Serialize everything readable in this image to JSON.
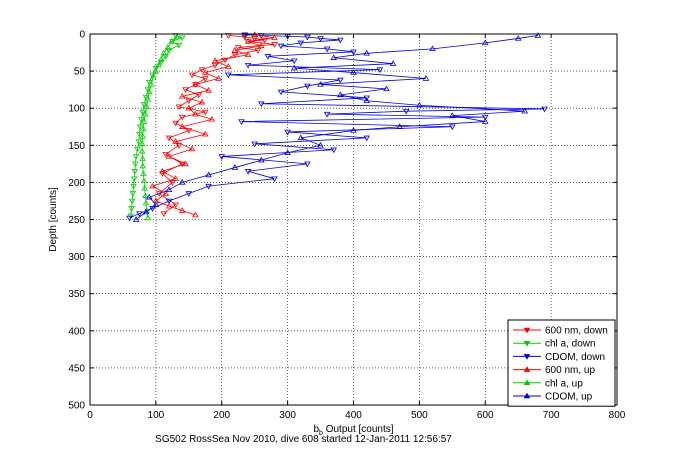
{
  "chart_data": {
    "type": "scatter",
    "title": "",
    "xlabel": "b",
    "xlabel_sub": "b",
    "xlabel_rest": " Output [counts]",
    "ylabel": "Depth [counts]",
    "caption": "SG502 RossSea Nov 2010, dive 608 started 12-Jan-2011 12:56:57",
    "xlim": [
      0,
      800
    ],
    "ylim": [
      0,
      500
    ],
    "y_reversed": true,
    "grid": true,
    "legend_position": "bottom-right",
    "xticks": [
      "0",
      "100",
      "200",
      "300",
      "400",
      "500",
      "600",
      "700",
      "800"
    ],
    "yticks": [
      "0",
      "50",
      "100",
      "150",
      "200",
      "250",
      "300",
      "350",
      "400",
      "450",
      "500"
    ],
    "series": [
      {
        "name": "600 nm, down",
        "color": "#ff0000",
        "marker": "triangle-down",
        "points": [
          [
            210,
            2
          ],
          [
            235,
            4
          ],
          [
            250,
            6
          ],
          [
            265,
            8
          ],
          [
            240,
            10
          ],
          [
            280,
            14
          ],
          [
            225,
            18
          ],
          [
            255,
            22
          ],
          [
            220,
            28
          ],
          [
            205,
            35
          ],
          [
            190,
            42
          ],
          [
            170,
            48
          ],
          [
            155,
            55
          ],
          [
            175,
            60
          ],
          [
            160,
            68
          ],
          [
            145,
            75
          ],
          [
            165,
            82
          ],
          [
            150,
            90
          ],
          [
            135,
            98
          ],
          [
            175,
            105
          ],
          [
            140,
            112
          ],
          [
            130,
            120
          ],
          [
            150,
            130
          ],
          [
            120,
            140
          ],
          [
            135,
            150
          ],
          [
            115,
            162
          ],
          [
            140,
            175
          ],
          [
            110,
            188
          ],
          [
            125,
            200
          ],
          [
            105,
            215
          ],
          [
            130,
            230
          ],
          [
            112,
            242
          ]
        ]
      },
      {
        "name": "chl a, down",
        "color": "#00cc00",
        "marker": "triangle-down",
        "points": [
          [
            130,
            2
          ],
          [
            140,
            5
          ],
          [
            125,
            10
          ],
          [
            135,
            15
          ],
          [
            120,
            22
          ],
          [
            115,
            30
          ],
          [
            108,
            38
          ],
          [
            100,
            46
          ],
          [
            95,
            55
          ],
          [
            90,
            65
          ],
          [
            88,
            75
          ],
          [
            85,
            85
          ],
          [
            82,
            95
          ],
          [
            80,
            105
          ],
          [
            78,
            115
          ],
          [
            76,
            125
          ],
          [
            75,
            135
          ],
          [
            74,
            145
          ],
          [
            72,
            155
          ],
          [
            70,
            165
          ],
          [
            69,
            175
          ],
          [
            68,
            185
          ],
          [
            67,
            195
          ],
          [
            66,
            205
          ],
          [
            65,
            215
          ],
          [
            64,
            225
          ],
          [
            63,
            235
          ],
          [
            62,
            245
          ]
        ]
      },
      {
        "name": "CDOM, down",
        "color": "#0000dd",
        "marker": "triangle-down",
        "points": [
          [
            235,
            1
          ],
          [
            260,
            2
          ],
          [
            300,
            3
          ],
          [
            330,
            4
          ],
          [
            350,
            6
          ],
          [
            380,
            8
          ],
          [
            320,
            12
          ],
          [
            290,
            16
          ],
          [
            360,
            20
          ],
          [
            400,
            24
          ],
          [
            270,
            30
          ],
          [
            310,
            36
          ],
          [
            240,
            42
          ],
          [
            440,
            48
          ],
          [
            210,
            55
          ],
          [
            380,
            62
          ],
          [
            330,
            70
          ],
          [
            290,
            78
          ],
          [
            420,
            86
          ],
          [
            260,
            94
          ],
          [
            690,
            101
          ],
          [
            480,
            104
          ],
          [
            360,
            108
          ],
          [
            600,
            112
          ],
          [
            230,
            118
          ],
          [
            550,
            125
          ],
          [
            300,
            132
          ],
          [
            420,
            140
          ],
          [
            250,
            148
          ],
          [
            370,
            156
          ],
          [
            200,
            165
          ],
          [
            330,
            175
          ],
          [
            240,
            185
          ],
          [
            280,
            195
          ],
          [
            180,
            205
          ],
          [
            150,
            215
          ],
          [
            120,
            225
          ],
          [
            95,
            235
          ],
          [
            75,
            242
          ],
          [
            60,
            248
          ]
        ]
      },
      {
        "name": "600 nm, up",
        "color": "#ff0000",
        "marker": "triangle-up",
        "points": [
          [
            160,
            244
          ],
          [
            140,
            238
          ],
          [
            120,
            232
          ],
          [
            100,
            225
          ],
          [
            115,
            215
          ],
          [
            95,
            205
          ],
          [
            130,
            195
          ],
          [
            110,
            185
          ],
          [
            145,
            175
          ],
          [
            120,
            165
          ],
          [
            155,
            155
          ],
          [
            130,
            145
          ],
          [
            175,
            135
          ],
          [
            140,
            125
          ],
          [
            185,
            115
          ],
          [
            160,
            108
          ],
          [
            150,
            100
          ],
          [
            170,
            92
          ],
          [
            140,
            84
          ],
          [
            180,
            76
          ],
          [
            160,
            68
          ],
          [
            195,
            60
          ],
          [
            175,
            52
          ],
          [
            210,
            44
          ],
          [
            190,
            36
          ],
          [
            240,
            28
          ],
          [
            220,
            22
          ],
          [
            260,
            16
          ],
          [
            240,
            10
          ],
          [
            280,
            5
          ],
          [
            250,
            1
          ]
        ]
      },
      {
        "name": "chl a, up",
        "color": "#00cc00",
        "marker": "triangle-up",
        "points": [
          [
            88,
            248
          ],
          [
            86,
            238
          ],
          [
            85,
            228
          ],
          [
            84,
            218
          ],
          [
            83,
            208
          ],
          [
            82,
            198
          ],
          [
            81,
            188
          ],
          [
            80,
            178
          ],
          [
            80,
            168
          ],
          [
            79,
            158
          ],
          [
            79,
            148
          ],
          [
            80,
            138
          ],
          [
            81,
            128
          ],
          [
            82,
            118
          ],
          [
            84,
            108
          ],
          [
            86,
            98
          ],
          [
            88,
            88
          ],
          [
            90,
            78
          ],
          [
            93,
            68
          ],
          [
            96,
            58
          ],
          [
            100,
            50
          ],
          [
            104,
            42
          ],
          [
            108,
            34
          ],
          [
            112,
            26
          ],
          [
            118,
            18
          ],
          [
            124,
            10
          ],
          [
            132,
            4
          ]
        ]
      },
      {
        "name": "CDOM, up",
        "color": "#0000dd",
        "marker": "triangle-up",
        "points": [
          [
            70,
            250
          ],
          [
            85,
            240
          ],
          [
            100,
            230
          ],
          [
            90,
            220
          ],
          [
            120,
            210
          ],
          [
            140,
            200
          ],
          [
            180,
            190
          ],
          [
            220,
            180
          ],
          [
            260,
            170
          ],
          [
            300,
            160
          ],
          [
            350,
            150
          ],
          [
            320,
            140
          ],
          [
            400,
            130
          ],
          [
            470,
            125
          ],
          [
            600,
            118
          ],
          [
            550,
            110
          ],
          [
            660,
            104
          ],
          [
            500,
            96
          ],
          [
            420,
            90
          ],
          [
            380,
            82
          ],
          [
            450,
            74
          ],
          [
            350,
            68
          ],
          [
            510,
            60
          ],
          [
            400,
            52
          ],
          [
            310,
            46
          ],
          [
            460,
            40
          ],
          [
            370,
            32
          ],
          [
            420,
            26
          ],
          [
            520,
            20
          ],
          [
            600,
            12
          ],
          [
            650,
            6
          ],
          [
            680,
            2
          ]
        ]
      }
    ]
  }
}
